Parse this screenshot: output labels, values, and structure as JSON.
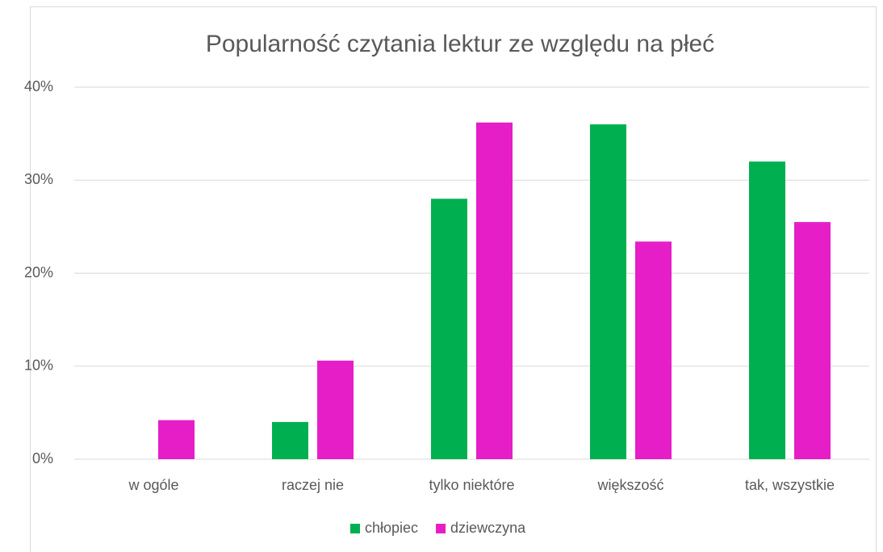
{
  "chart_data": {
    "type": "bar",
    "title": "Popularność czytania lektur ze względu na płeć",
    "categories": [
      "w ogóle",
      "raczej nie",
      "tylko niektóre",
      "większość",
      "tak, wszystkie"
    ],
    "series": [
      {
        "name": "chłopiec",
        "color": "#00b050",
        "values": [
          0,
          4,
          28,
          36,
          32
        ]
      },
      {
        "name": "dziewczyna",
        "color": "#e61ec8",
        "values": [
          4.2,
          10.6,
          36.2,
          23.4,
          25.5
        ]
      }
    ],
    "ylim": [
      0,
      40
    ],
    "yticks": [
      {
        "value": 0,
        "label": "0%"
      },
      {
        "value": 10,
        "label": "10%"
      },
      {
        "value": 20,
        "label": "20%"
      },
      {
        "value": 30,
        "label": "30%"
      },
      {
        "value": 40,
        "label": "40%"
      }
    ],
    "grid": true,
    "legend": "bottom"
  }
}
